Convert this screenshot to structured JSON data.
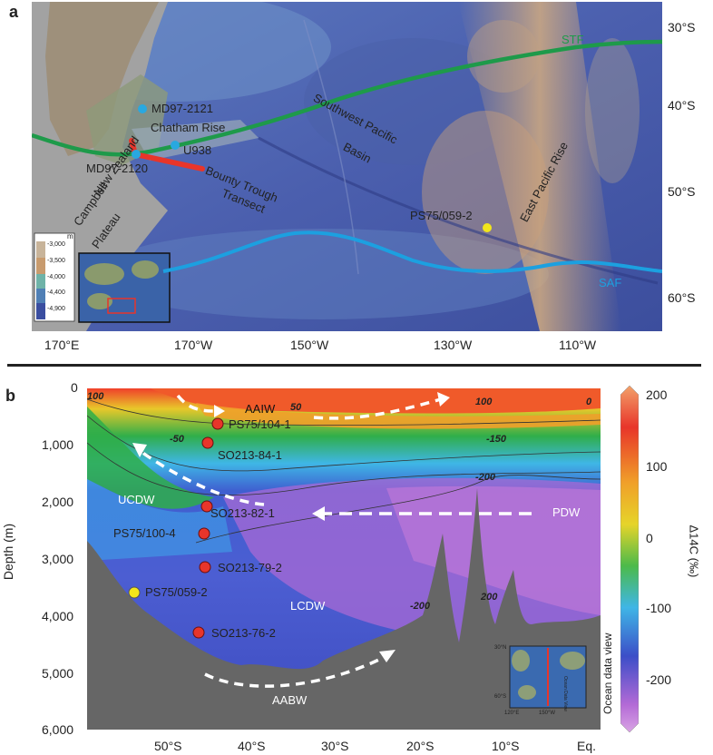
{
  "panel_a": {
    "letter": "a",
    "lat_ticks": [
      "30°S",
      "40°S",
      "50°S",
      "60°S"
    ],
    "lon_ticks": [
      "170°E",
      "170°W",
      "150°W",
      "130°W",
      "110°W"
    ],
    "labels": {
      "stf": "STF",
      "saf": "SAF",
      "southwest_pacific_basin": [
        "Southwest Pacific",
        "Basin"
      ],
      "east_pacific_rise": "East Pacific Rise",
      "new_zealand": "New Zealand",
      "chatham_rise": "Chatham Rise",
      "campbell_plateau": [
        "Campbell",
        "Plateau"
      ],
      "bounty_trough_transect": [
        "Bounty Trough",
        "Transect"
      ],
      "md97_2121": "MD97-2121",
      "md97_2120": "MD97-2120",
      "u938": "U938",
      "ps75_059_2": "PS75/059-2"
    },
    "depth_legend": {
      "unit": "m",
      "values": [
        "-3,000",
        "-3,500",
        "-4,000",
        "-4,400",
        "-4,900"
      ],
      "colors": [
        "#c8b49a",
        "#c89b6e",
        "#6fb3a8",
        "#4f7fb5",
        "#3a4ea0"
      ]
    },
    "colors": {
      "stf": "#1e9a4a",
      "saf": "#1ca0e0",
      "transect": "#e8352a",
      "site_blue": "#29a8e0",
      "site_yellow": "#f2e61b"
    }
  },
  "panel_b": {
    "letter": "b",
    "y_axis_title": "Depth (m)",
    "y_ticks": [
      "0",
      "1,000",
      "2,000",
      "3,000",
      "4,000",
      "5,000",
      "6,000"
    ],
    "x_ticks": [
      "50°S",
      "40°S",
      "30°S",
      "20°S",
      "10°S",
      "Eq."
    ],
    "colorbar": {
      "title": "Δ14C (‰)",
      "ticks": [
        "200",
        "100",
        "0",
        "-100",
        "-200"
      ]
    },
    "water_masses": [
      "AAIW",
      "UCDW",
      "PDW",
      "LCDW",
      "AABW"
    ],
    "contour_labels": [
      "100",
      "50",
      "100",
      "0",
      "-50",
      "-150",
      "-200",
      "-200",
      "200"
    ],
    "stations": {
      "ps75_104_1": "PS75/104-1",
      "so213_84_1": "SO213-84-1",
      "so213_82_1": "SO213-82-1",
      "ps75_100_4": "PS75/100-4",
      "so213_79_2": "SO213-79-2",
      "ps75_059_2": "PS75/059-2",
      "so213_76_2": "SO213-76-2"
    },
    "ocean_data_view": "Ocean data view",
    "inset_labels": {
      "lat_30n": "30°N",
      "lat_60s": "60°S",
      "lon_120e": "120°E",
      "lon_150w": "150°W",
      "odv_small": "Ocean Data View"
    }
  }
}
